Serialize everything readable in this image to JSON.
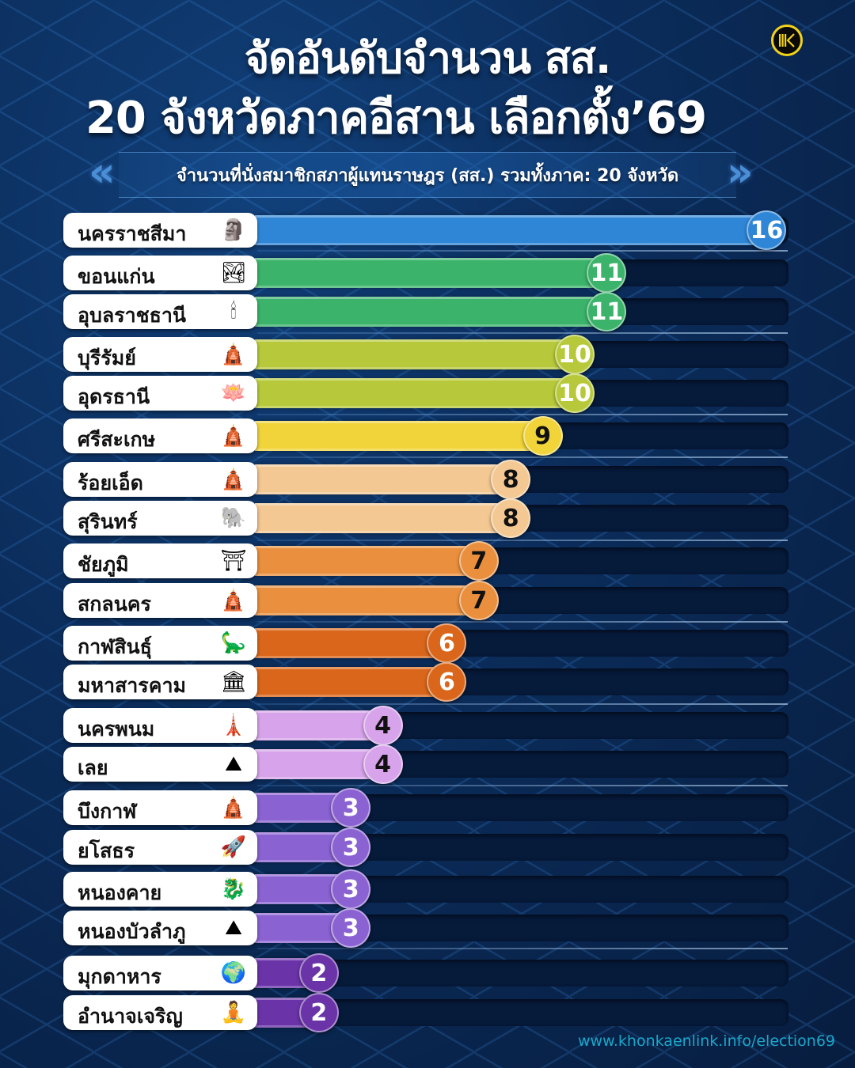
{
  "header": {
    "title_line1": "จัดอันดับจำนวน สส.",
    "title_line2": "20 จังหวัดภาคอีสาน เลือกตั้ง’69",
    "subtitle": "จำนวนที่นั่งสมาชิกสภาผู้แทนราษฎร (สส.) รวมทั้งภาค: 20 จังหวัด",
    "logo": "khonkaenlink-k-logo"
  },
  "footer": {
    "url": "www.khonkaenlink.info/election69"
  },
  "chart_data": {
    "type": "bar",
    "orientation": "horizontal",
    "title": "จัดอันดับจำนวน สส. 20 จังหวัดภาคอีสาน เลือกตั้ง’69",
    "subtitle": "จำนวนที่นั่งสมาชิกสภาผู้แทนราษฎร (สส.) รวมทั้งภาค: 20 จังหวัด",
    "xlim": [
      0,
      16
    ],
    "categories": [
      "นครราชสีมา",
      "ขอนแก่น",
      "อุบลราชธานี",
      "บุรีรัมย์",
      "อุดรธานี",
      "ศรีสะเกษ",
      "ร้อยเอ็ด",
      "สุรินทร์",
      "ชัยภูมิ",
      "สกลนคร",
      "กาฬสินธุ์",
      "มหาสารคาม",
      "นครพนม",
      "เลย",
      "บึงกาฬ",
      "ยโสธร",
      "หนองคาย",
      "หนองบัวลำภู",
      "มุกดาหาร",
      "อำนาจเจริญ"
    ],
    "values": [
      16,
      11,
      11,
      10,
      10,
      9,
      8,
      8,
      7,
      7,
      6,
      6,
      4,
      4,
      3,
      3,
      3,
      3,
      2,
      2
    ],
    "icons": [
      "statue-icon",
      "lake-icon",
      "candle-float-icon",
      "temple-icon",
      "lotus-icon",
      "temple-icon",
      "pagoda-icon",
      "elephant-icon",
      "rock-arch-icon",
      "pagoda-icon",
      "dinosaur-icon",
      "building-icon",
      "stupa-icon",
      "mountain-icon",
      "pagoda-icon",
      "rocket-icon",
      "naga-icon",
      "mountain-icon",
      "river-icon",
      "buddha-icon"
    ],
    "colors": {
      "16": "#2f86d6",
      "11": "#3bb36a",
      "10": "#b7c93a",
      "9": "#f0d43a",
      "8": "#f3c893",
      "7": "#e98f3d",
      "6": "#d9661a",
      "4": "#d7a3ea",
      "3": "#8a62d2",
      "2": "#6a33a8"
    },
    "badge_text_dark": [
      9,
      8,
      7,
      4
    ]
  }
}
